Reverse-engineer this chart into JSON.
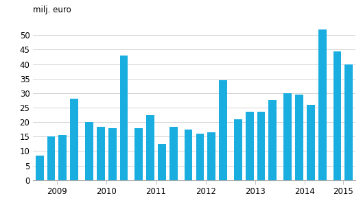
{
  "values": [
    8.5,
    15.0,
    15.5,
    28.0,
    20.0,
    18.5,
    18.0,
    43.0,
    18.0,
    22.5,
    12.5,
    18.5,
    17.5,
    16.0,
    16.5,
    34.5,
    21.0,
    23.5,
    23.5,
    27.5,
    30.0,
    29.5,
    26.0,
    52.0,
    44.5,
    40.0
  ],
  "bar_color": "#1AAEE0",
  "ylabel": "milj. euro",
  "ylim": [
    0,
    55
  ],
  "yticks": [
    0,
    5,
    10,
    15,
    20,
    25,
    30,
    35,
    40,
    45,
    50
  ],
  "year_labels": [
    "2009",
    "2010",
    "2011",
    "2012",
    "2013",
    "2014",
    "2015"
  ],
  "background_color": "#ffffff",
  "grid_color": "#cccccc",
  "n_quarters": [
    4,
    4,
    4,
    4,
    4,
    4,
    2
  ]
}
